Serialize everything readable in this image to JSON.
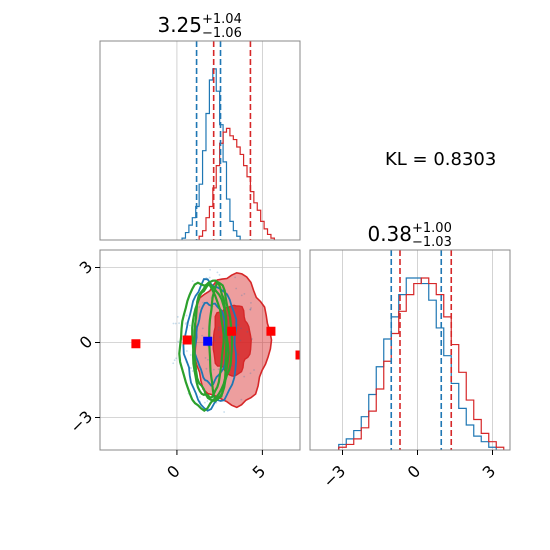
{
  "colors": {
    "blue": "#1f77b4",
    "red": "#d62728",
    "green": "#2ca02c",
    "marker_red": "#ff0000",
    "marker_blue": "#0000ff",
    "grid": "#c8c8c8",
    "spine": "#888888"
  },
  "kl_label": "KL = 0.8303",
  "chart_data": [
    {
      "id": "param1-marginal",
      "type": "histogram",
      "title": {
        "median": "3.25",
        "upper": "+1.04",
        "lower": "−1.06"
      },
      "xlim": [
        -4.5,
        7.2
      ],
      "grid": true,
      "series": [
        {
          "color": "blue",
          "x": [
            0.4,
            0.6,
            0.8,
            1.0,
            1.2,
            1.4,
            1.6,
            1.8,
            2.0,
            2.2,
            2.4,
            2.6,
            2.8,
            3.0,
            3.2,
            3.4,
            3.6
          ],
          "density": [
            0.01,
            0.04,
            0.08,
            0.12,
            0.18,
            0.3,
            0.48,
            0.68,
            0.86,
            0.92,
            0.8,
            0.62,
            0.42,
            0.22,
            0.1,
            0.05,
            0.02
          ]
        },
        {
          "color": "red",
          "x": [
            1.4,
            1.6,
            1.8,
            2.0,
            2.2,
            2.4,
            2.6,
            2.8,
            3.0,
            3.2,
            3.4,
            3.6,
            3.8,
            4.0,
            4.2,
            4.4,
            4.6,
            4.8,
            5.0,
            5.2,
            5.4,
            5.6
          ],
          "density": [
            0.02,
            0.05,
            0.12,
            0.18,
            0.28,
            0.4,
            0.52,
            0.58,
            0.6,
            0.56,
            0.54,
            0.5,
            0.46,
            0.4,
            0.34,
            0.26,
            0.2,
            0.16,
            0.1,
            0.06,
            0.03,
            0.01
          ]
        }
      ],
      "vlines": [
        {
          "color": "blue",
          "x": 1.15
        },
        {
          "color": "blue",
          "x": 2.55
        },
        {
          "color": "red",
          "x": 2.15
        },
        {
          "color": "red",
          "x": 4.3
        }
      ]
    },
    {
      "id": "joint",
      "type": "contour",
      "xlim": [
        -4.5,
        7.2
      ],
      "ylim": [
        -4.3,
        3.7
      ],
      "xticks": [
        0,
        5
      ],
      "yticks": [
        -3,
        0,
        3
      ],
      "xtick_labels": [
        "0",
        "5"
      ],
      "ytick_labels": [
        "−3",
        "0",
        "3"
      ],
      "grid": true,
      "red_points": [
        {
          "x": -2.4,
          "y": -0.05
        },
        {
          "x": 0.6,
          "y": 0.1
        },
        {
          "x": 3.2,
          "y": 0.45
        },
        {
          "x": 5.5,
          "y": 0.45
        },
        {
          "x": 7.2,
          "y": -0.5
        }
      ],
      "blue_points": [
        {
          "x": 1.8,
          "y": 0.05
        }
      ],
      "red_contours": [
        {
          "cx": 3.2,
          "cy": 0.1,
          "rx": 1.1,
          "ry": 1.4,
          "level": "inner"
        },
        {
          "cx": 3.2,
          "cy": 0.1,
          "rx": 2.2,
          "ry": 2.6,
          "level": "outer"
        }
      ],
      "blue_contours": [
        {
          "cx": 2.0,
          "cy": 0.0,
          "rx": 0.9,
          "ry": 1.6
        },
        {
          "cx": 2.0,
          "cy": -0.1,
          "rx": 1.5,
          "ry": 2.5
        }
      ],
      "green_contours": [
        {
          "cx": 1.8,
          "cy": 0.0,
          "rx": 0.9,
          "ry": 2.2
        },
        {
          "cx": 2.1,
          "cy": 0.1,
          "rx": 1.1,
          "ry": 2.4
        },
        {
          "cx": 1.6,
          "cy": -0.1,
          "rx": 1.4,
          "ry": 2.5
        },
        {
          "cx": 2.4,
          "cy": 0.0,
          "rx": 0.5,
          "ry": 2.3
        }
      ]
    },
    {
      "id": "param2-marginal",
      "type": "histogram",
      "title": {
        "median": "0.38",
        "upper": "+1.00",
        "lower": "−1.03"
      },
      "xlim": [
        -4.3,
        3.7
      ],
      "xticks": [
        -3,
        0,
        3
      ],
      "xtick_labels": [
        "−3",
        "0",
        "3"
      ],
      "grid": true,
      "series": [
        {
          "color": "blue",
          "x": [
            -3.0,
            -2.7,
            -2.4,
            -2.1,
            -1.8,
            -1.5,
            -1.2,
            -0.9,
            -0.6,
            -0.3,
            0.0,
            0.3,
            0.6,
            0.9,
            1.2,
            1.5,
            1.8,
            2.1,
            2.4,
            2.7,
            3.0
          ],
          "density": [
            0.02,
            0.04,
            0.07,
            0.12,
            0.2,
            0.3,
            0.4,
            0.48,
            0.56,
            0.62,
            0.62,
            0.6,
            0.54,
            0.44,
            0.34,
            0.24,
            0.15,
            0.09,
            0.05,
            0.03,
            0.01
          ]
        },
        {
          "color": "red",
          "x": [
            -3.0,
            -2.7,
            -2.4,
            -2.1,
            -1.8,
            -1.5,
            -1.2,
            -0.9,
            -0.6,
            -0.3,
            0.0,
            0.3,
            0.6,
            0.9,
            1.2,
            1.5,
            1.8,
            2.1,
            2.4,
            2.7,
            3.0,
            3.3
          ],
          "density": [
            0.01,
            0.02,
            0.04,
            0.08,
            0.14,
            0.22,
            0.32,
            0.42,
            0.5,
            0.56,
            0.6,
            0.62,
            0.6,
            0.56,
            0.48,
            0.38,
            0.28,
            0.18,
            0.11,
            0.06,
            0.03,
            0.01
          ]
        }
      ],
      "vlines": [
        {
          "color": "blue",
          "x": -1.05
        },
        {
          "color": "blue",
          "x": 0.95
        },
        {
          "color": "red",
          "x": -0.7
        },
        {
          "color": "red",
          "x": 1.35
        }
      ]
    }
  ]
}
